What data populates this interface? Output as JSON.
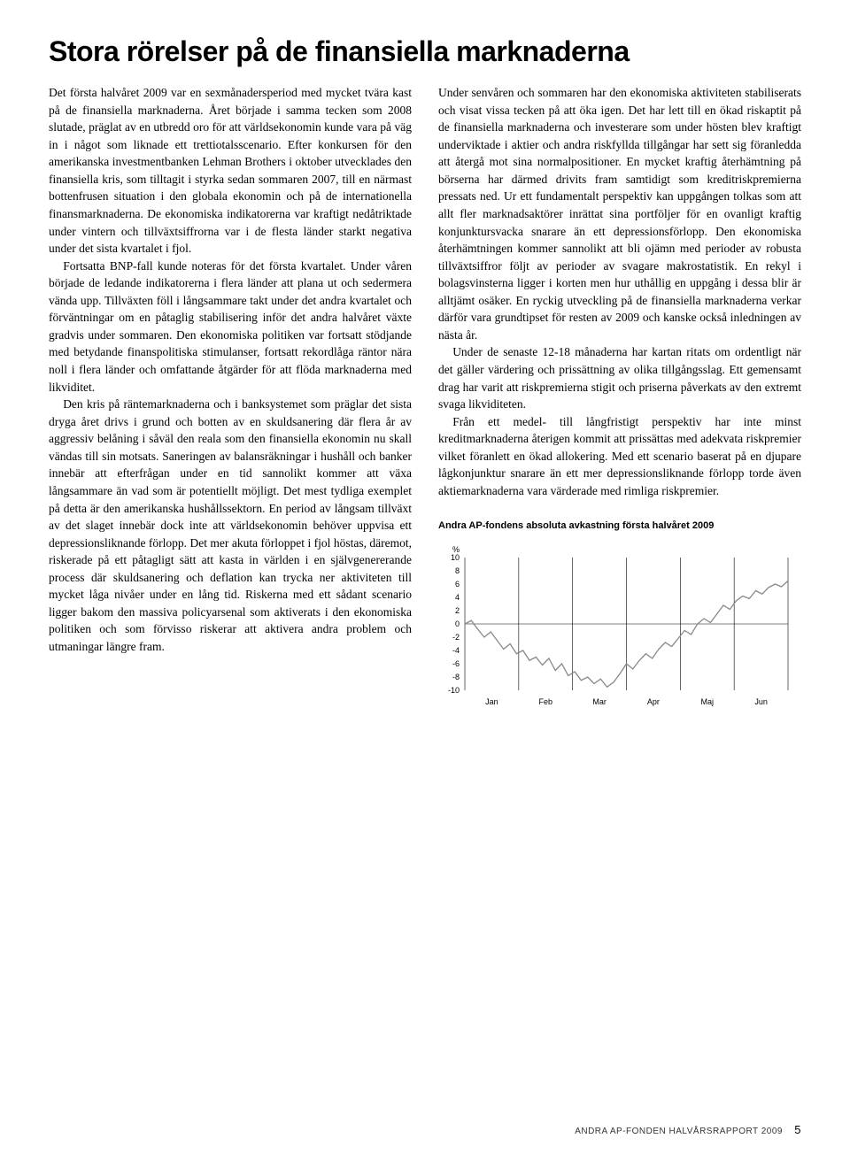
{
  "title": "Stora rörelser på de finansiella marknaderna",
  "left": {
    "p1": "Det första halvåret 2009 var en sexmånadersperiod med mycket tvära kast på de finansiella marknaderna. Året började i samma tecken som 2008 slutade, präglat av en utbredd oro för att världsekonomin kunde vara på väg in i något som liknade ett trettiotalsscenario. Efter konkursen för den amerikanska investmentbanken Lehman Brothers i oktober utvecklades den finansiella kris, som tilltagit i styrka sedan sommaren 2007, till en närmast bottenfrusen situation i den globala ekonomin och på de internationella finansmarknaderna. De ekonomiska indikatorerna var kraftigt nedåtriktade under vintern och tillväxtsiffrorna var i de flesta länder starkt negativa under det sista kvartalet i fjol.",
    "p2": "Fortsatta BNP-fall kunde noteras för det första kvartalet. Under våren började de ledande indikatorerna i flera länder att plana ut och sedermera vända upp. Tillväxten föll i långsammare takt under det andra kvartalet och förväntningar om en påtaglig stabilisering inför det andra halvåret växte gradvis under sommaren. Den ekonomiska politiken var fortsatt stödjande med betydande finanspolitiska stimulanser, fortsatt rekordlåga räntor nära noll i flera länder och omfattande åtgärder för att flöda marknaderna med likviditet.",
    "p3": "Den kris på räntemarknaderna och i banksystemet som präglar det sista dryga året drivs i grund och botten av en skuldsanering där flera år av aggressiv belåning i såväl den reala som den finansiella ekonomin nu skall vändas till sin motsats. Saneringen av balansräkningar i hushåll och banker innebär att efterfrågan under en tid sannolikt kommer att växa långsammare än vad som är potentiellt möjligt. Det mest tydliga exemplet på detta är den amerikanska hushållssektorn. En period av långsam tillväxt av det slaget innebär dock inte att världsekonomin behöver uppvisa ett depressionsliknande förlopp. Det mer akuta förloppet i fjol höstas, däremot, riskerade på ett påtagligt sätt att kasta in världen i en självgenererande process där skuldsanering och deflation kan trycka ner aktiviteten till mycket låga nivåer under en lång tid. Riskerna med ett sådant scenario ligger bakom den massiva policyarsenal som aktiverats i den ekonomiska politiken och som förvisso riskerar att aktivera andra problem och utmaningar längre fram."
  },
  "right": {
    "p1": "Under senvåren och sommaren har den ekonomiska aktiviteten stabiliserats och visat vissa tecken på att öka igen. Det har lett till en ökad riskaptit på de finansiella marknaderna och investerare som under hösten blev kraftigt underviktade i aktier och andra riskfyllda tillgångar har sett sig föranledda att återgå mot sina normalpositioner. En mycket kraftig återhämtning på börserna har därmed drivits fram samtidigt som kreditriskpremierna pressats ned. Ur ett fundamentalt perspektiv kan uppgången tolkas som att allt fler marknadsaktörer inrättat sina portföljer för en ovanligt kraftig konjunktursvacka snarare än ett depressionsförlopp. Den ekonomiska återhämtningen kommer sannolikt att bli ojämn med perioder av robusta tillväxtsiffror följt av perioder av svagare makrostatistik. En rekyl i bolagsvinsterna ligger i korten men hur uthållig en uppgång i dessa blir är alltjämt osäker. En ryckig utveckling på de finansiella marknaderna verkar därför vara grundtipset för resten av 2009 och kanske också inledningen av nästa år.",
    "p2": "Under de senaste 12-18 månaderna har kartan ritats om ordentligt när det gäller värdering och prissättning av olika tillgångsslag. Ett gemensamt drag har varit att riskpremierna stigit och priserna påverkats av den extremt svaga likviditeten.",
    "p3": "Från ett medel- till långfristigt perspektiv har inte minst kreditmarknaderna återigen kommit att prissättas med adekvata riskpremier vilket föranlett en ökad allokering. Med ett scenario baserat på en djupare lågkonjunktur snarare än ett mer depressionsliknande förlopp torde även aktiemarknaderna vara värderade med rimliga riskpremier."
  },
  "chart": {
    "title": "Andra AP-fondens absoluta avkastning första halvåret 2009",
    "type": "line",
    "ylim": [
      -10,
      10
    ],
    "yticks": [
      10,
      8,
      6,
      4,
      2,
      0,
      -2,
      -4,
      -6,
      -8,
      -10
    ],
    "xlabels": [
      "Jan",
      "Feb",
      "Mar",
      "Apr",
      "Maj",
      "Jun"
    ],
    "xsegments": 6,
    "percent_label": "%",
    "line_color": "#888888",
    "line_width": 1.3,
    "grid_color": "#000000",
    "grid_width": 0.6,
    "background_color": "#ffffff",
    "series": [
      [
        0,
        0.0
      ],
      [
        2,
        0.5
      ],
      [
        4,
        -0.8
      ],
      [
        6,
        -2.0
      ],
      [
        8,
        -1.2
      ],
      [
        10,
        -2.5
      ],
      [
        12,
        -3.8
      ],
      [
        14,
        -3.0
      ],
      [
        16,
        -4.5
      ],
      [
        18,
        -4.0
      ],
      [
        20,
        -5.5
      ],
      [
        22,
        -5.0
      ],
      [
        24,
        -6.2
      ],
      [
        26,
        -5.2
      ],
      [
        28,
        -7.0
      ],
      [
        30,
        -6.0
      ],
      [
        32,
        -7.8
      ],
      [
        34,
        -7.2
      ],
      [
        36,
        -8.5
      ],
      [
        38,
        -8.0
      ],
      [
        40,
        -9.0
      ],
      [
        42,
        -8.3
      ],
      [
        44,
        -9.5
      ],
      [
        46,
        -8.8
      ],
      [
        48,
        -7.5
      ],
      [
        50,
        -6.0
      ],
      [
        52,
        -6.8
      ],
      [
        54,
        -5.5
      ],
      [
        56,
        -4.5
      ],
      [
        58,
        -5.2
      ],
      [
        60,
        -3.8
      ],
      [
        62,
        -2.8
      ],
      [
        64,
        -3.4
      ],
      [
        66,
        -2.2
      ],
      [
        68,
        -1.0
      ],
      [
        70,
        -1.6
      ],
      [
        72,
        0.0
      ],
      [
        74,
        0.8
      ],
      [
        76,
        0.2
      ],
      [
        78,
        1.5
      ],
      [
        80,
        2.8
      ],
      [
        82,
        2.2
      ],
      [
        84,
        3.5
      ],
      [
        86,
        4.2
      ],
      [
        88,
        3.8
      ],
      [
        90,
        5.0
      ],
      [
        92,
        4.5
      ],
      [
        94,
        5.5
      ],
      [
        96,
        6.0
      ],
      [
        98,
        5.6
      ],
      [
        100,
        6.5
      ]
    ]
  },
  "footer": {
    "text": "ANDRA AP-FONDEN HALVÅRSRAPPORT 2009",
    "page": "5"
  }
}
